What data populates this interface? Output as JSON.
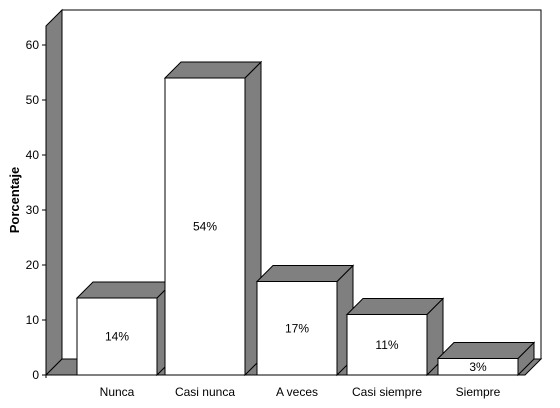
{
  "chart_data": {
    "type": "bar",
    "style": "3d",
    "categories": [
      "Nunca",
      "Casi nunca",
      "A veces",
      "Casi siempre",
      "Siempre"
    ],
    "values": [
      14,
      54,
      17,
      11,
      3
    ],
    "data_labels": [
      "14%",
      "54%",
      "17%",
      "11%",
      "3%"
    ],
    "ylabel": "Porcentaje",
    "xlabel": "",
    "ylim": [
      0,
      60
    ],
    "yticks": [
      "0",
      "10",
      "20",
      "30",
      "40",
      "50",
      "60"
    ],
    "grid": false,
    "legend": "none",
    "colors": {
      "bar_front": "#ffffff",
      "bar_top": "#808080",
      "bar_side": "#7f7f7f",
      "back_wall": "#ffffff",
      "side_wall": "#808080",
      "floor": "#808080",
      "outline": "#000000"
    }
  }
}
